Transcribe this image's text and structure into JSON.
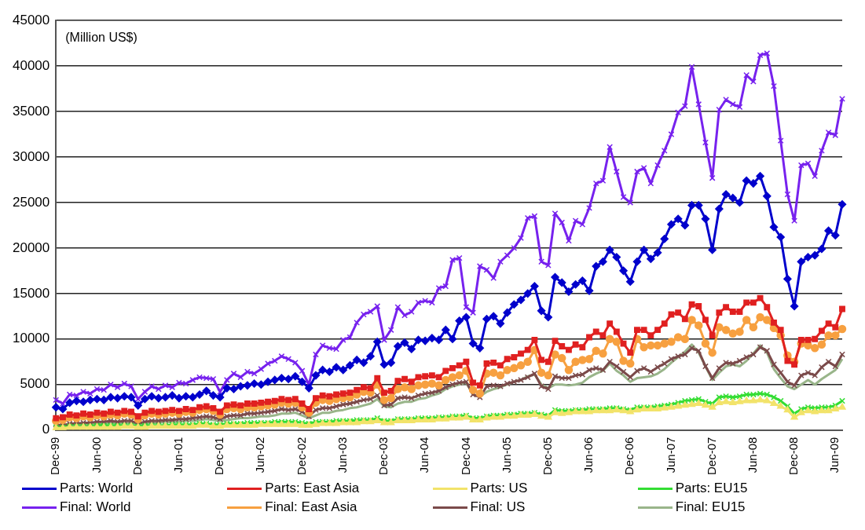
{
  "chart_data": {
    "type": "line",
    "annotations": [
      "(Million US$)"
    ],
    "categories": [
      "Dec-99",
      null,
      null,
      null,
      null,
      null,
      "Jun-00",
      null,
      null,
      null,
      null,
      null,
      "Dec-00",
      null,
      null,
      null,
      null,
      null,
      "Jun-01",
      null,
      null,
      null,
      null,
      null,
      "Dec-01",
      null,
      null,
      null,
      null,
      null,
      "Jun-02",
      null,
      null,
      null,
      null,
      null,
      "Dec-02",
      null,
      null,
      null,
      null,
      null,
      "Jun-03",
      null,
      null,
      null,
      null,
      null,
      "Dec-03",
      null,
      null,
      null,
      null,
      null,
      "Jun-04",
      null,
      null,
      null,
      null,
      null,
      "Dec-04",
      null,
      null,
      null,
      null,
      null,
      "Jun-05",
      null,
      null,
      null,
      null,
      null,
      "Dec-05",
      null,
      null,
      null,
      null,
      null,
      "Jun-06",
      null,
      null,
      null,
      null,
      null,
      "Dec-06",
      null,
      null,
      null,
      null,
      null,
      "Jun-07",
      null,
      null,
      null,
      null,
      null,
      "Dec-07",
      null,
      null,
      null,
      null,
      null,
      "Jun-08",
      null,
      null,
      null,
      null,
      null,
      "Dec-08",
      null,
      null,
      null,
      null,
      null,
      "Jun-09",
      null
    ],
    "ylim": [
      0,
      45000
    ],
    "yticks": [
      0,
      5000,
      10000,
      15000,
      20000,
      25000,
      30000,
      35000,
      40000,
      45000
    ],
    "grid": "y",
    "legend": "bottom",
    "line_style": "solid",
    "series": [
      {
        "name": "Parts: World",
        "color": "#0000cc",
        "marker": "diamond",
        "values": [
          2500,
          2300,
          3000,
          3200,
          3100,
          3300,
          3400,
          3300,
          3600,
          3500,
          3700,
          3600,
          2700,
          3400,
          3700,
          3500,
          3600,
          3800,
          3500,
          3700,
          3600,
          3900,
          4300,
          3800,
          3600,
          4600,
          4500,
          4800,
          4900,
          5100,
          5000,
          5300,
          5500,
          5700,
          5600,
          5900,
          5300,
          4600,
          6000,
          6600,
          6400,
          6900,
          6600,
          7100,
          7700,
          7400,
          8100,
          9700,
          7200,
          7400,
          9200,
          9600,
          8900,
          9900,
          9800,
          10100,
          9900,
          11000,
          10000,
          12000,
          12400,
          9500,
          9000,
          12200,
          12500,
          11700,
          12900,
          13800,
          14300,
          15000,
          15800,
          13100,
          12400,
          16800,
          16200,
          15200,
          16000,
          16400,
          15300,
          18000,
          18500,
          19800,
          19000,
          17500,
          16300,
          18500,
          19800,
          18800,
          19500,
          21000,
          22600,
          23200,
          22500,
          24700,
          24700,
          23200,
          19800,
          24300,
          25900,
          25500,
          25000,
          27400,
          27100,
          27900,
          25700,
          22300,
          21200,
          16600,
          13600,
          18500,
          19000,
          19200,
          19900,
          21900,
          21400,
          24800
        ]
      },
      {
        "name": "Parts: East Asia",
        "color": "#e02020",
        "marker": "square",
        "values": [
          1300,
          1400,
          1700,
          1600,
          1800,
          1700,
          1900,
          1800,
          2000,
          1900,
          2100,
          2000,
          1500,
          1900,
          2100,
          2000,
          2100,
          2200,
          2100,
          2300,
          2200,
          2500,
          2600,
          2400,
          2000,
          2700,
          2800,
          2700,
          2900,
          2900,
          3000,
          3100,
          3200,
          3400,
          3300,
          3400,
          2900,
          2300,
          3500,
          3800,
          3700,
          3900,
          4000,
          4100,
          4400,
          4700,
          4600,
          5700,
          4100,
          4300,
          5400,
          5600,
          5300,
          5800,
          5900,
          6000,
          5800,
          6500,
          6800,
          7100,
          7500,
          5200,
          4900,
          7300,
          7400,
          7100,
          7800,
          8000,
          8400,
          8800,
          9900,
          7700,
          7500,
          9800,
          9200,
          8800,
          9400,
          9100,
          10200,
          10800,
          10400,
          11700,
          10800,
          9500,
          8500,
          11000,
          11000,
          10400,
          11000,
          11700,
          12700,
          12900,
          12200,
          13800,
          13600,
          12100,
          10400,
          12900,
          13500,
          13000,
          13000,
          14000,
          14000,
          14500,
          13500,
          11800,
          11000,
          7600,
          7200,
          9900,
          9900,
          10000,
          10900,
          11700,
          11300,
          13300
        ]
      },
      {
        "name": "Parts: US",
        "color": "#f2e36a",
        "marker": "triangle",
        "values": [
          200,
          200,
          300,
          300,
          300,
          300,
          300,
          300,
          300,
          300,
          400,
          400,
          300,
          300,
          400,
          400,
          400,
          400,
          400,
          400,
          400,
          500,
          500,
          400,
          400,
          500,
          500,
          500,
          500,
          500,
          600,
          600,
          600,
          600,
          600,
          600,
          500,
          500,
          600,
          700,
          700,
          700,
          800,
          800,
          800,
          900,
          900,
          1000,
          800,
          800,
          1000,
          1000,
          1000,
          1100,
          1100,
          1100,
          1200,
          1200,
          1300,
          1300,
          1400,
          1100,
          1100,
          1300,
          1400,
          1400,
          1500,
          1500,
          1600,
          1600,
          1700,
          1500,
          1400,
          1900,
          1800,
          1900,
          2000,
          2000,
          2000,
          2100,
          2100,
          2100,
          2200,
          2100,
          2000,
          2200,
          2300,
          2300,
          2300,
          2400,
          2500,
          2600,
          2700,
          2800,
          2900,
          2700,
          2500,
          3000,
          3100,
          3000,
          3100,
          3200,
          3200,
          3300,
          3200,
          2900,
          2600,
          2200,
          1400,
          1900,
          2100,
          2000,
          2100,
          2100,
          2300,
          2500
        ]
      },
      {
        "name": "Parts: EU15",
        "color": "#33dd33",
        "marker": "cross",
        "values": [
          300,
          300,
          400,
          400,
          400,
          400,
          500,
          500,
          500,
          500,
          500,
          500,
          400,
          500,
          500,
          500,
          500,
          600,
          600,
          600,
          600,
          700,
          700,
          600,
          600,
          700,
          700,
          700,
          800,
          800,
          800,
          800,
          900,
          900,
          900,
          900,
          800,
          700,
          900,
          900,
          900,
          1000,
          1000,
          1000,
          1100,
          1100,
          1100,
          1300,
          1000,
          1000,
          1200,
          1200,
          1200,
          1300,
          1300,
          1300,
          1400,
          1400,
          1500,
          1500,
          1600,
          1300,
          1300,
          1500,
          1600,
          1600,
          1700,
          1700,
          1800,
          1800,
          1900,
          1700,
          1600,
          2200,
          2100,
          2100,
          2200,
          2200,
          2300,
          2300,
          2300,
          2400,
          2400,
          2300,
          2200,
          2500,
          2500,
          2500,
          2600,
          2700,
          2800,
          3000,
          3200,
          3300,
          3400,
          3100,
          2900,
          3600,
          3700,
          3600,
          3700,
          3900,
          3900,
          4000,
          3900,
          3600,
          3200,
          2600,
          1800,
          2300,
          2500,
          2400,
          2500,
          2500,
          2700,
          3200
        ]
      },
      {
        "name": "Final: World",
        "color": "#7722ee",
        "marker": "cross",
        "values": [
          3300,
          2900,
          3900,
          3800,
          4200,
          4000,
          4500,
          4400,
          5000,
          4700,
          5100,
          4800,
          3400,
          4200,
          4800,
          4500,
          4900,
          4700,
          5200,
          5100,
          5500,
          5800,
          5700,
          5600,
          4200,
          5500,
          6200,
          5800,
          6400,
          6200,
          6700,
          7300,
          7600,
          8100,
          7800,
          7400,
          6500,
          5000,
          8300,
          9300,
          9000,
          8900,
          9900,
          10200,
          11800,
          12700,
          13000,
          13600,
          9900,
          11000,
          13500,
          12600,
          13000,
          14000,
          14200,
          14000,
          15600,
          15800,
          18700,
          18900,
          13500,
          12900,
          18000,
          17600,
          16700,
          18500,
          19200,
          20000,
          21100,
          23300,
          23500,
          18500,
          18100,
          23800,
          22800,
          20800,
          23000,
          22600,
          24400,
          27100,
          27400,
          31100,
          28400,
          25600,
          25000,
          28400,
          28800,
          27100,
          29100,
          30700,
          32500,
          34900,
          35600,
          39900,
          35800,
          31600,
          27700,
          35200,
          36300,
          35800,
          35500,
          39000,
          38300,
          41200,
          41400,
          37800,
          31800,
          25900,
          23000,
          29100,
          29300,
          27900,
          30700,
          32700,
          32400,
          36400
        ]
      },
      {
        "name": "Final: East Asia",
        "color": "#f7a040",
        "marker": "circle",
        "values": [
          1000,
          1100,
          1400,
          1300,
          1500,
          1400,
          1600,
          1500,
          1700,
          1600,
          1800,
          1700,
          1200,
          1600,
          1800,
          1700,
          1800,
          1900,
          1800,
          2000,
          1900,
          2200,
          2300,
          2100,
          1700,
          2300,
          2400,
          2300,
          2500,
          2500,
          2600,
          2700,
          2800,
          3000,
          2900,
          3000,
          2500,
          1900,
          3000,
          3300,
          3200,
          3400,
          3500,
          3600,
          3900,
          4200,
          4100,
          5000,
          3300,
          3500,
          4500,
          4700,
          4500,
          4900,
          5000,
          5100,
          4900,
          5500,
          5800,
          6000,
          6500,
          4400,
          4000,
          6200,
          6300,
          6000,
          6600,
          6800,
          7100,
          7500,
          8800,
          6300,
          6000,
          8300,
          7900,
          6600,
          7500,
          7700,
          7800,
          8700,
          8400,
          10000,
          9700,
          7600,
          7300,
          10000,
          9100,
          9300,
          9300,
          9500,
          9700,
          10200,
          10000,
          12100,
          11500,
          9500,
          8500,
          11300,
          11000,
          10600,
          10800,
          12100,
          11300,
          12400,
          12100,
          11200,
          10400,
          8200,
          7500,
          9500,
          9300,
          9000,
          9400,
          10400,
          10400,
          11100
        ]
      },
      {
        "name": "Final: US",
        "color": "#7b4a4a",
        "marker": "cross",
        "values": [
          600,
          500,
          700,
          700,
          800,
          800,
          900,
          900,
          1000,
          900,
          1000,
          1000,
          700,
          900,
          1000,
          1000,
          1100,
          1100,
          1200,
          1200,
          1300,
          1400,
          1500,
          1400,
          1200,
          1500,
          1600,
          1600,
          1800,
          1800,
          1900,
          2000,
          2100,
          2300,
          2200,
          2300,
          2000,
          1500,
          2200,
          2400,
          2400,
          2600,
          2800,
          2900,
          3100,
          3300,
          3400,
          3800,
          2700,
          2800,
          3500,
          3600,
          3500,
          3800,
          4000,
          4100,
          4300,
          4700,
          5000,
          5200,
          5300,
          3900,
          3600,
          4800,
          4900,
          4800,
          5100,
          5300,
          5500,
          5800,
          6200,
          4800,
          4500,
          5900,
          5700,
          5700,
          6000,
          6100,
          6600,
          6800,
          6600,
          7500,
          7000,
          6400,
          5800,
          6500,
          6800,
          6400,
          6900,
          7300,
          7800,
          8100,
          8300,
          9000,
          8700,
          7000,
          5700,
          6800,
          7400,
          7300,
          7600,
          8000,
          8300,
          9100,
          8700,
          7200,
          6300,
          5300,
          4900,
          6000,
          6300,
          6000,
          6900,
          7500,
          7000,
          8300
        ]
      },
      {
        "name": "Final: EU15",
        "color": "#99b58a",
        "marker": "none",
        "values": [
          500,
          400,
          500,
          600,
          600,
          600,
          700,
          700,
          800,
          700,
          800,
          800,
          600,
          700,
          800,
          800,
          900,
          900,
          900,
          1000,
          1000,
          1100,
          1200,
          1100,
          1000,
          1100,
          1200,
          1300,
          1300,
          1400,
          1500,
          1500,
          1600,
          1800,
          1800,
          1900,
          1600,
          1300,
          1600,
          1900,
          1900,
          2100,
          2200,
          2400,
          2500,
          2700,
          2900,
          3400,
          2600,
          2500,
          2900,
          3100,
          3100,
          3400,
          3500,
          3800,
          4000,
          4500,
          4800,
          5000,
          5200,
          3900,
          3700,
          4200,
          4500,
          4700,
          5000,
          5300,
          5500,
          5900,
          6100,
          5000,
          4600,
          5000,
          5000,
          4900,
          5000,
          5200,
          5800,
          6200,
          6500,
          7300,
          6500,
          6000,
          5300,
          5700,
          5800,
          5900,
          6200,
          6700,
          7400,
          8000,
          8600,
          9400,
          8500,
          7000,
          5500,
          6300,
          7000,
          7200,
          7000,
          7600,
          8400,
          9300,
          8500,
          6700,
          5700,
          4800,
          4500,
          5000,
          5500,
          5000,
          5600,
          6100,
          6600,
          7800
        ]
      }
    ]
  }
}
